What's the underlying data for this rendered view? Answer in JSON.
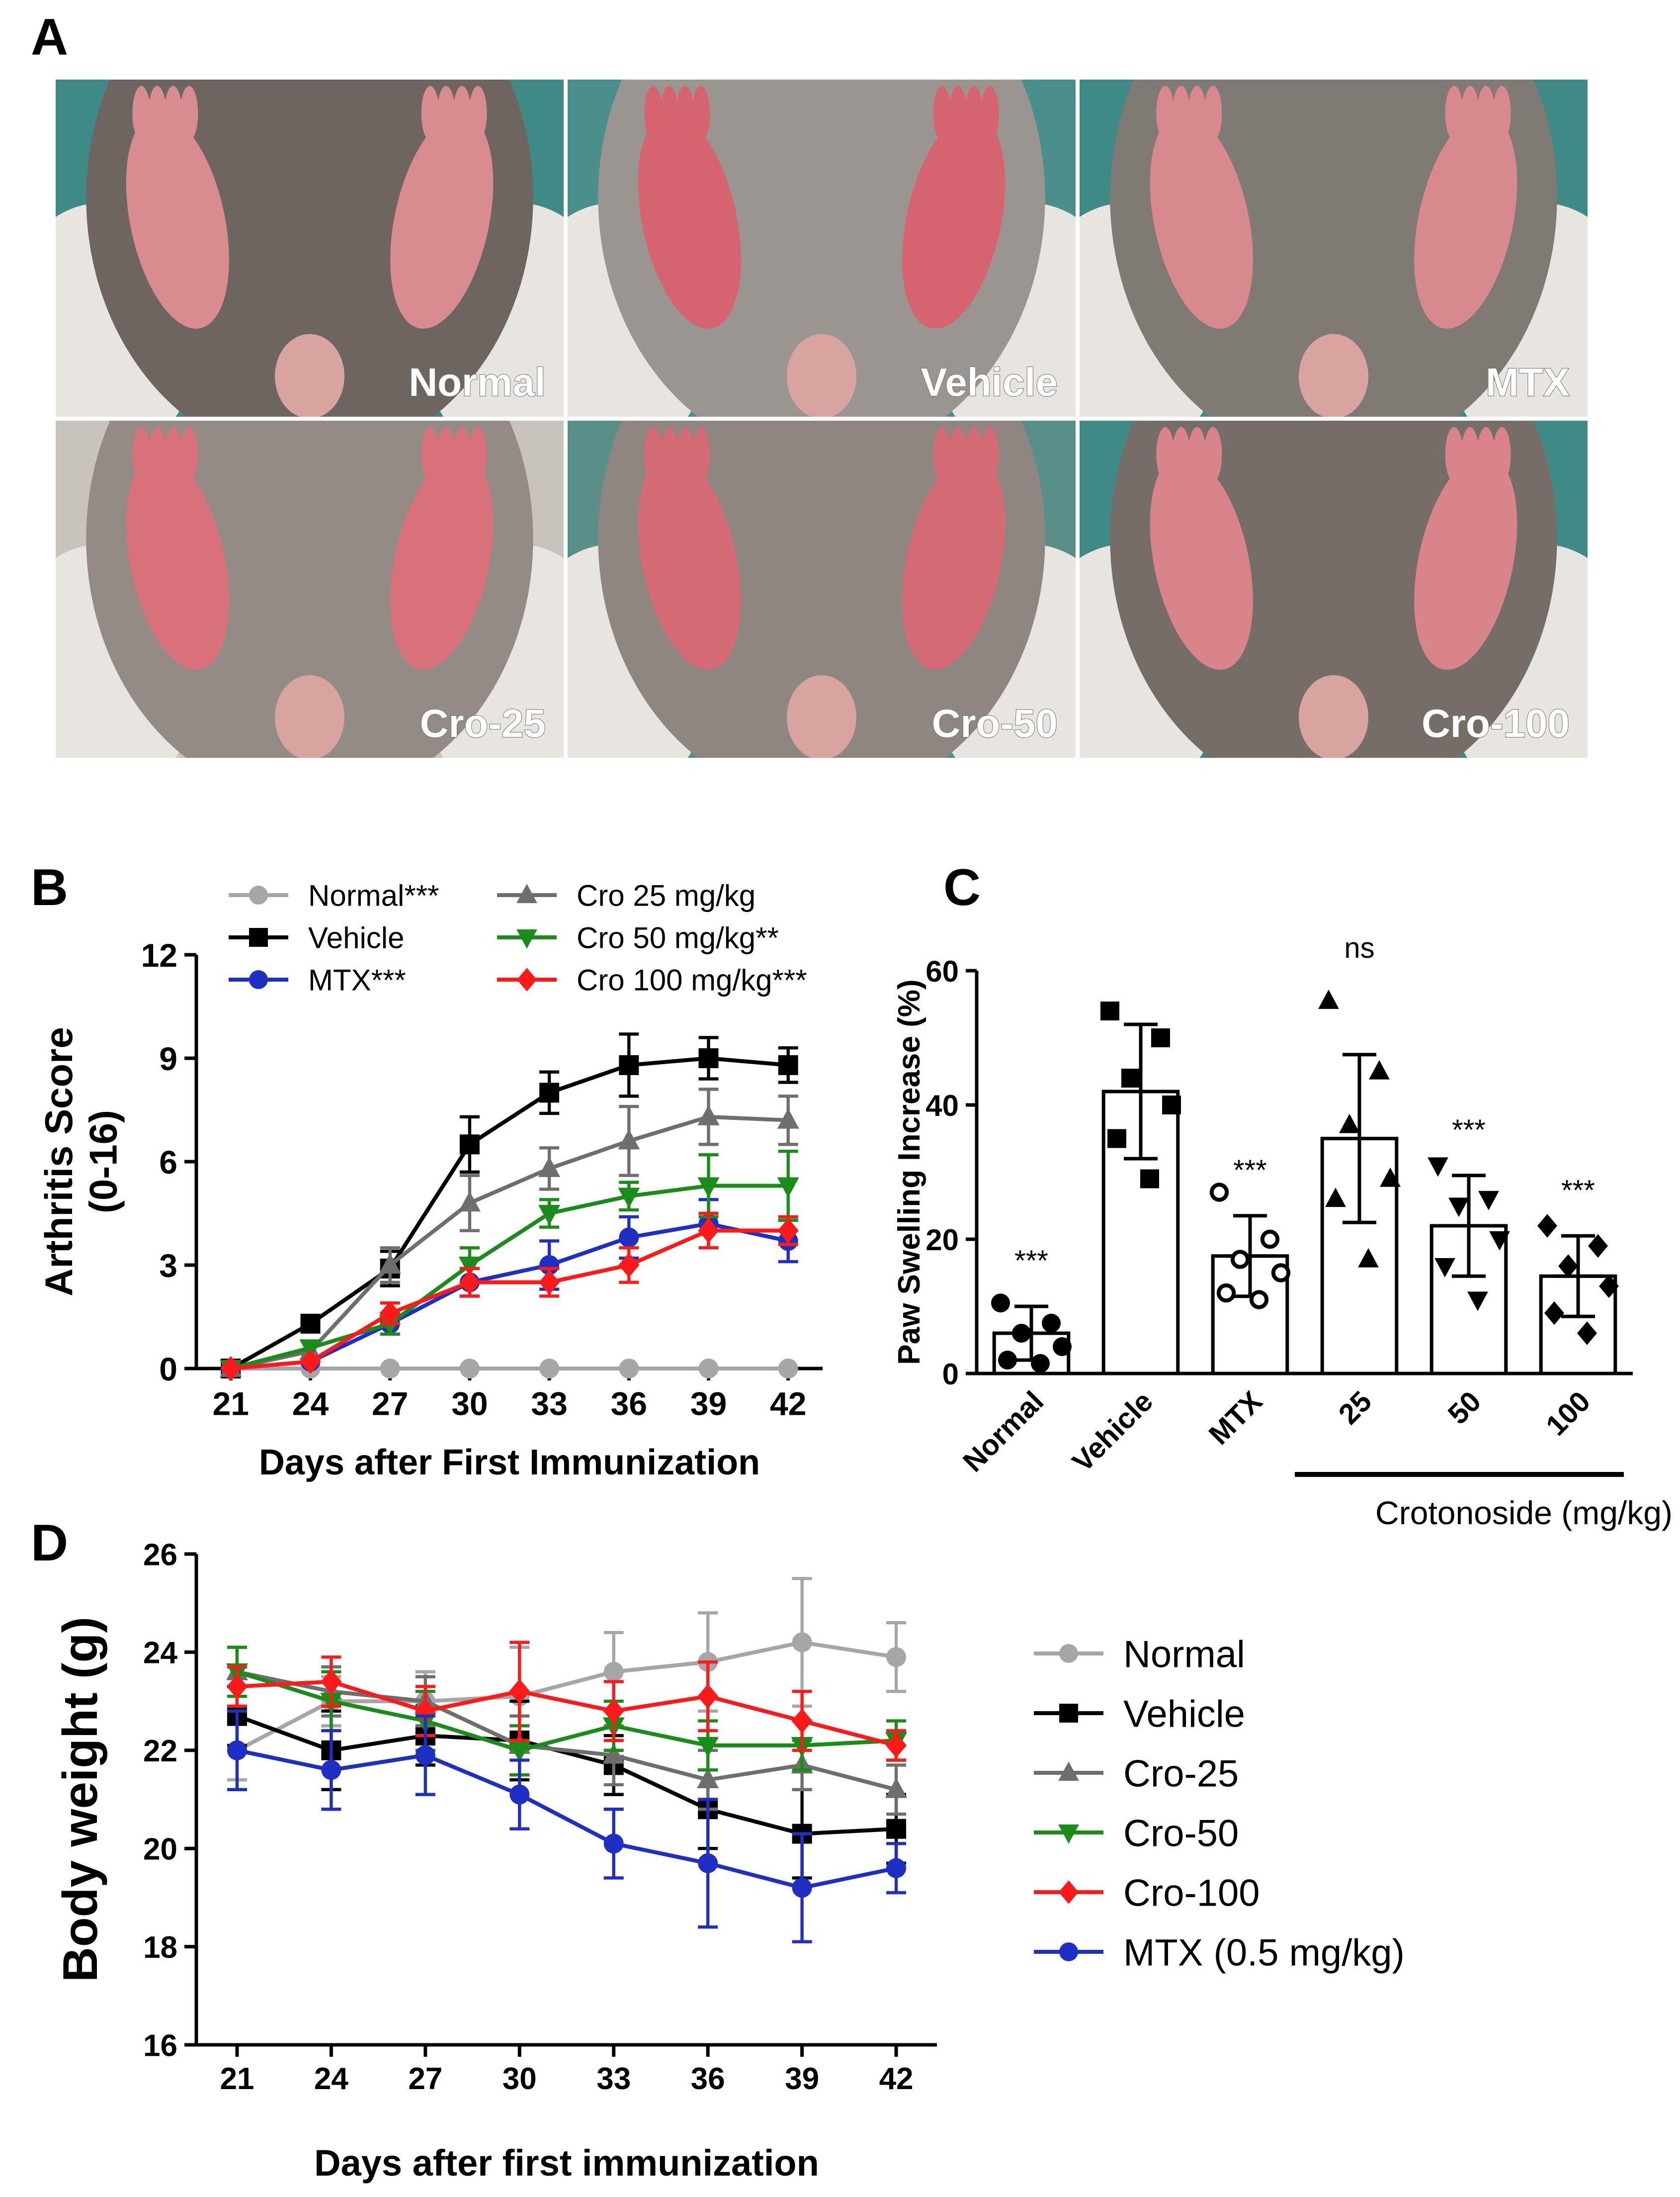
{
  "panel_a": {
    "letter": "A",
    "photos": [
      {
        "label": "Normal",
        "skin": "#d98c8f",
        "fur": "#6d655f",
        "bg": "#3f8a86"
      },
      {
        "label": "Vehicle",
        "skin": "#d5646e",
        "fur": "#9a9590",
        "bg": "#4a8f8c"
      },
      {
        "label": "MTX",
        "skin": "#d8898d",
        "fur": "#7f7a74",
        "bg": "#3f8a86"
      },
      {
        "label": "Cro-25",
        "skin": "#d9717a",
        "fur": "#938c86",
        "bg": "#c9c3bd"
      },
      {
        "label": "Cro-50",
        "skin": "#d36a74",
        "fur": "#8e8680",
        "bg": "#5a8f89"
      },
      {
        "label": "Cro-100",
        "skin": "#d9838a",
        "fur": "#756e68",
        "bg": "#3f8a86"
      }
    ]
  },
  "panel_b": {
    "letter": "B"
  },
  "panel_c": {
    "letter": "C"
  },
  "panel_d": {
    "letter": "D"
  },
  "chart_data": [
    {
      "id": "B",
      "type": "line",
      "xlabel": "Days after First Immunization",
      "ylabel": "Arthritis Score\n(0-16)",
      "x": [
        21,
        24,
        27,
        30,
        33,
        36,
        39,
        42
      ],
      "xticks": [
        "21",
        "24",
        "27",
        "30",
        "33",
        "36",
        "39",
        "42"
      ],
      "ylim": [
        0,
        12
      ],
      "yticks": [
        "0",
        "3",
        "6",
        "9",
        "12"
      ],
      "legend_columns": 2,
      "series": [
        {
          "name": "Normal***",
          "color": "#a6a6a6",
          "marker": "circle",
          "values": [
            0,
            0,
            0,
            0,
            0,
            0,
            0,
            0
          ],
          "err": [
            0,
            0,
            0,
            0,
            0,
            0,
            0,
            0
          ]
        },
        {
          "name": "Vehicle",
          "color": "#000000",
          "marker": "square",
          "values": [
            0,
            1.3,
            2.9,
            6.5,
            8.0,
            8.8,
            9.0,
            8.8
          ],
          "err": [
            0,
            0,
            0.5,
            0.8,
            0.6,
            0.9,
            0.6,
            0.5
          ]
        },
        {
          "name": "MTX***",
          "color": "#1f2fc4",
          "marker": "circle",
          "values": [
            0,
            0.2,
            1.3,
            2.5,
            3.0,
            3.8,
            4.2,
            3.7
          ],
          "err": [
            0,
            0,
            0.3,
            0.4,
            0.7,
            0.6,
            0.7,
            0.6
          ]
        },
        {
          "name": "Cro 25 mg/kg",
          "color": "#6e6e6e",
          "marker": "triangle-up",
          "values": [
            0,
            0.5,
            3.0,
            4.8,
            5.8,
            6.6,
            7.3,
            7.2
          ],
          "err": [
            0,
            0,
            0.5,
            0.8,
            0.6,
            1.0,
            0.8,
            0.7
          ]
        },
        {
          "name": "Cro 50 mg/kg**",
          "color": "#1a8c1a",
          "marker": "triangle-down",
          "values": [
            0,
            0.6,
            1.3,
            3.0,
            4.5,
            5.0,
            5.3,
            5.3
          ],
          "err": [
            0,
            0,
            0.3,
            0.5,
            0.4,
            0.4,
            0.9,
            1.0
          ]
        },
        {
          "name": "Cro 100 mg/kg***",
          "color": "#ff1a1a",
          "marker": "diamond",
          "values": [
            0,
            0.2,
            1.6,
            2.5,
            2.5,
            3.0,
            4.0,
            4.0
          ],
          "err": [
            0,
            0,
            0.3,
            0.4,
            0.4,
            0.5,
            0.5,
            0.4
          ]
        }
      ]
    },
    {
      "id": "C",
      "type": "bar",
      "ylabel": "Paw Swelling Increase (%)",
      "categories": [
        "Normal",
        "Vehicle",
        "MTX",
        "25",
        "50",
        "100"
      ],
      "values": [
        6,
        42,
        17.5,
        35,
        22,
        14.5
      ],
      "sd": [
        4,
        10,
        6,
        12.5,
        7.5,
        6
      ],
      "significance": [
        "***",
        "",
        "***",
        "ns",
        "***",
        "***"
      ],
      "markers": [
        "circle",
        "square",
        "circle-open",
        "triangle-up",
        "triangle-down",
        "diamond"
      ],
      "points": [
        [
          10.5,
          7.5,
          6,
          4,
          2,
          1.5
        ],
        [
          54,
          50,
          44,
          40,
          35,
          29
        ],
        [
          27,
          20,
          17,
          15,
          12,
          11
        ],
        [
          55.5,
          45,
          37,
          29,
          26,
          17
        ],
        [
          31,
          26,
          25,
          20,
          16,
          11
        ],
        [
          22,
          19,
          16,
          13,
          9,
          6
        ]
      ],
      "ylim": [
        0,
        60
      ],
      "yticks": [
        "0",
        "20",
        "40",
        "60"
      ],
      "group_label": "Crotonoside (mg/kg)"
    },
    {
      "id": "D",
      "type": "line",
      "xlabel": "Days after first immunization",
      "ylabel": "Body weight (g)",
      "x": [
        21,
        24,
        27,
        30,
        33,
        36,
        39,
        42
      ],
      "xticks": [
        "21",
        "24",
        "27",
        "30",
        "33",
        "36",
        "39",
        "42"
      ],
      "ylim": [
        16,
        26
      ],
      "yticks": [
        "16",
        "18",
        "20",
        "22",
        "24",
        "26"
      ],
      "legend_columns": 1,
      "series": [
        {
          "name": "Normal",
          "color": "#a6a6a6",
          "marker": "circle",
          "values": [
            22.0,
            23.0,
            23.0,
            23.1,
            23.6,
            23.8,
            24.2,
            23.9
          ],
          "err": [
            0.6,
            0.5,
            0.6,
            1.0,
            0.8,
            1.0,
            1.3,
            0.7
          ]
        },
        {
          "name": "Vehicle",
          "color": "#000000",
          "marker": "square",
          "values": [
            22.7,
            22.0,
            22.3,
            22.2,
            21.7,
            20.8,
            20.3,
            20.4
          ],
          "err": [
            0.6,
            0.8,
            0.6,
            0.8,
            0.6,
            0.8,
            0.9,
            0.7
          ]
        },
        {
          "name": "Cro-25",
          "color": "#6e6e6e",
          "marker": "triangle-up",
          "values": [
            23.6,
            23.2,
            23.0,
            22.1,
            21.9,
            21.4,
            21.7,
            21.2
          ],
          "err": [
            0.5,
            0.5,
            0.5,
            0.6,
            0.6,
            0.6,
            0.5,
            0.5
          ]
        },
        {
          "name": "Cro-50",
          "color": "#1a8c1a",
          "marker": "triangle-down",
          "values": [
            23.6,
            23.0,
            22.6,
            22.0,
            22.5,
            22.1,
            22.1,
            22.2
          ],
          "err": [
            0.5,
            0.6,
            0.6,
            0.5,
            0.5,
            0.5,
            0.5,
            0.4
          ]
        },
        {
          "name": "Cro-100",
          "color": "#ff1a1a",
          "marker": "diamond",
          "values": [
            23.3,
            23.4,
            22.8,
            23.2,
            22.8,
            23.1,
            22.6,
            22.1
          ],
          "err": [
            0.4,
            0.5,
            0.5,
            1.0,
            0.6,
            0.7,
            0.6,
            0.3
          ]
        },
        {
          "name": "MTX (0.5 mg/kg)",
          "color": "#1f2fc4",
          "marker": "circle",
          "values": [
            22.0,
            21.6,
            21.9,
            21.1,
            20.1,
            19.7,
            19.2,
            19.6
          ],
          "err": [
            0.8,
            0.8,
            0.8,
            0.7,
            0.7,
            1.3,
            1.1,
            0.5
          ]
        }
      ]
    }
  ]
}
